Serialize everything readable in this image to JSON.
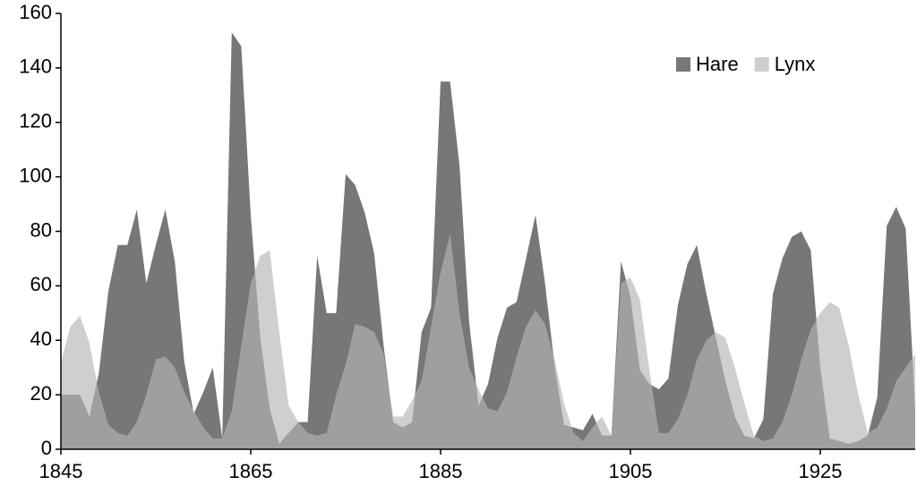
{
  "chart_data": {
    "type": "area",
    "x": [
      1845,
      1846,
      1847,
      1848,
      1849,
      1850,
      1851,
      1852,
      1853,
      1854,
      1855,
      1856,
      1857,
      1858,
      1859,
      1860,
      1861,
      1862,
      1863,
      1864,
      1865,
      1866,
      1867,
      1868,
      1869,
      1870,
      1871,
      1872,
      1873,
      1874,
      1875,
      1876,
      1877,
      1878,
      1879,
      1880,
      1881,
      1882,
      1883,
      1884,
      1885,
      1886,
      1887,
      1888,
      1889,
      1890,
      1891,
      1892,
      1893,
      1894,
      1895,
      1896,
      1897,
      1898,
      1899,
      1900,
      1901,
      1902,
      1903,
      1904,
      1905,
      1906,
      1907,
      1908,
      1909,
      1910,
      1911,
      1912,
      1913,
      1914,
      1915,
      1916,
      1917,
      1918,
      1919,
      1920,
      1921,
      1922,
      1923,
      1924,
      1925,
      1926,
      1927,
      1928,
      1929,
      1930,
      1931,
      1932,
      1933,
      1934,
      1935
    ],
    "series": [
      {
        "name": "Hare",
        "color": "#777777",
        "opacity": 1,
        "values": [
          20,
          20,
          20,
          12,
          28,
          58,
          75,
          75,
          88,
          61,
          75,
          88,
          69,
          32,
          13,
          21,
          30,
          4,
          153,
          148,
          86,
          41,
          15,
          2,
          6,
          10,
          10,
          71,
          50,
          50,
          101,
          97,
          87,
          72,
          38,
          10,
          8,
          10,
          43,
          52,
          135,
          135,
          104,
          47,
          16,
          24,
          41,
          52,
          54,
          70,
          86,
          61,
          31,
          9,
          8,
          7,
          13,
          5,
          5,
          69,
          56,
          29,
          24,
          22,
          26,
          53,
          68,
          75,
          57,
          41,
          25,
          12,
          5,
          4,
          11,
          57,
          70,
          78,
          80,
          73,
          30,
          4,
          3,
          2,
          3,
          5,
          19,
          82,
          89,
          81,
          15
        ]
      },
      {
        "name": "Lynx",
        "color": "#b6b6b6",
        "opacity": 0.65,
        "values": [
          32,
          45,
          49,
          39,
          21,
          9,
          6,
          5,
          10,
          20,
          33,
          34,
          30,
          21,
          14,
          8,
          4,
          4,
          14,
          38,
          61,
          71,
          73,
          43,
          16,
          10,
          6,
          5,
          6,
          20,
          31,
          46,
          45,
          43,
          35,
          12,
          12,
          18,
          25,
          45,
          65,
          79,
          50,
          30,
          22,
          15,
          14,
          21,
          34,
          45,
          51,
          46,
          33,
          17,
          6,
          3,
          8,
          12,
          5,
          61,
          63,
          55,
          29,
          6,
          6,
          11,
          20,
          33,
          40,
          43,
          41,
          30,
          17,
          5,
          3,
          4,
          10,
          20,
          33,
          44,
          50,
          54,
          52,
          38,
          20,
          6,
          8,
          15,
          25,
          30,
          35
        ]
      }
    ],
    "xlim": [
      1845,
      1935
    ],
    "xticks": [
      1845,
      1865,
      1885,
      1905,
      1925
    ],
    "ylim": [
      0,
      160
    ],
    "yticks": [
      0,
      20,
      40,
      60,
      80,
      100,
      120,
      140,
      160
    ],
    "legend": "top-right"
  }
}
